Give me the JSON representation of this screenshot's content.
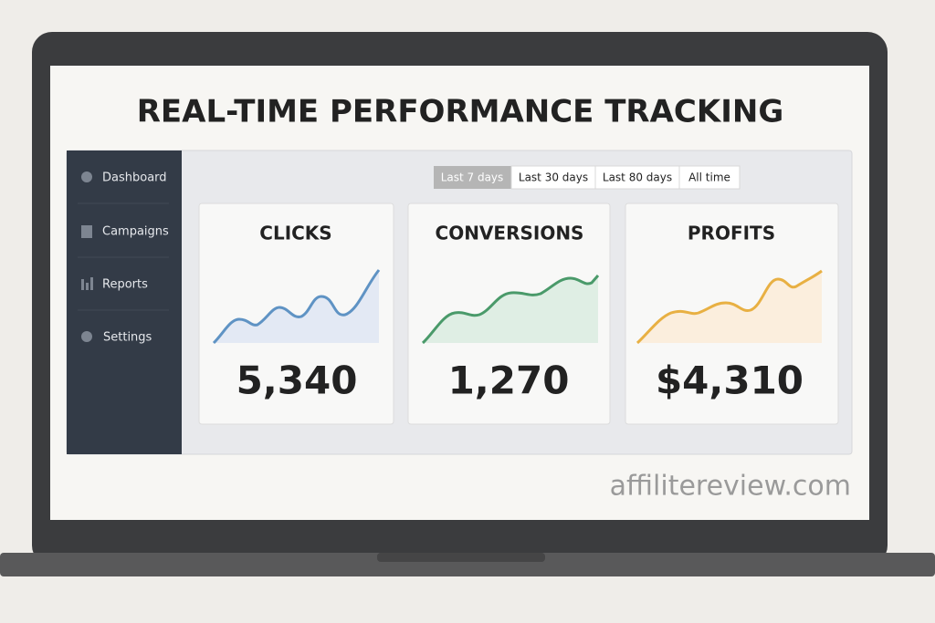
{
  "header": {
    "title": "REAL-TIME PERFORMANCE TRACKING"
  },
  "sidebar": {
    "items": [
      "Dashboard",
      "Campaigns",
      "Reports",
      "Settings"
    ]
  },
  "filters": {
    "options": [
      "Last 7 days",
      "Last 30 days",
      "Last 80 days",
      "All time"
    ]
  },
  "cards": [
    {
      "title": "CLICKS",
      "value": "5,340"
    },
    {
      "title": "CONVERSIONS",
      "value": "1,270"
    },
    {
      "title": "PROFITS",
      "value": "$4,310"
    }
  ],
  "watermark": "affilitereview.com"
}
